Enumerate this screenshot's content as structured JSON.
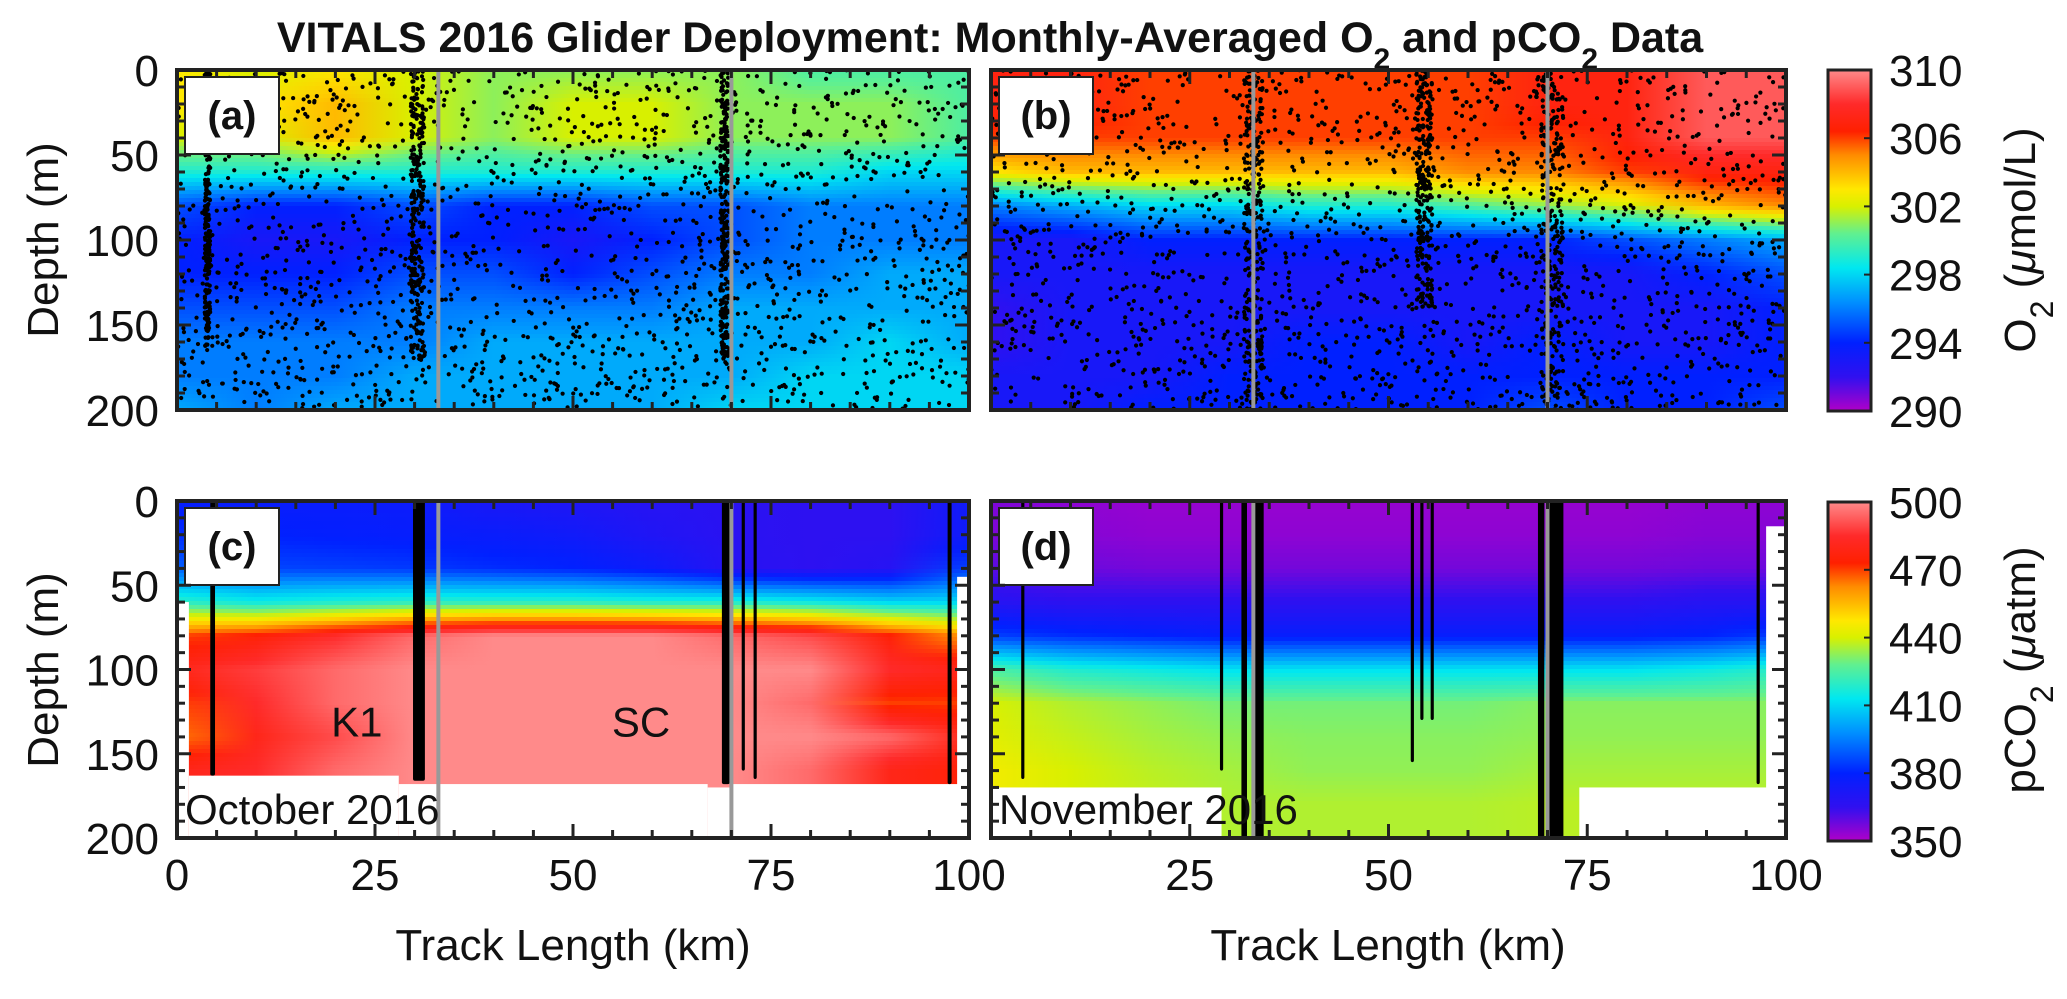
{
  "title_parts": [
    "VITALS 2016 Glider Deployment: Monthly-Averaged O",
    "2",
    " and pCO",
    "2",
    " Data"
  ],
  "xlabel": "Track Length (km)",
  "ylabel": "Depth (m)",
  "x_ticks": [
    "0",
    "25",
    "50",
    "75",
    "100"
  ],
  "y_ticks": [
    "0",
    "50",
    "100",
    "150",
    "200"
  ],
  "colorbars": [
    {
      "label_parts": [
        "O",
        "2",
        " (",
        "μ",
        "mol/L)"
      ],
      "ticks": [
        "310",
        "306",
        "302",
        "298",
        "294",
        "290"
      ],
      "clim": [
        290,
        310
      ]
    },
    {
      "label_parts": [
        "pCO",
        "2",
        " (",
        "μ",
        "atm)"
      ],
      "ticks": [
        "500",
        "470",
        "440",
        "410",
        "380",
        "350"
      ],
      "clim": [
        350,
        500
      ]
    }
  ],
  "colormap": [
    "#b000c8",
    "#3010f0",
    "#0020ff",
    "#0090ff",
    "#00e8f0",
    "#60f090",
    "#d8f000",
    "#ffe800",
    "#ff8c00",
    "#ff2000",
    "#ff2a2a",
    "#ff8a8a"
  ],
  "colormap_positions": [
    0,
    0.1,
    0.2,
    0.32,
    0.42,
    0.52,
    0.6,
    0.65,
    0.75,
    0.82,
    0.9,
    1
  ],
  "station_color": "#999999",
  "chart_data": [
    {
      "type": "heatmap",
      "panel_label": "(a)",
      "variable": "O2",
      "month": "",
      "clim": [
        290,
        310
      ],
      "xlim": [
        0,
        100
      ],
      "ylim": [
        0,
        200
      ],
      "x_km": [
        0,
        10,
        20,
        30,
        40,
        50,
        60,
        70,
        80,
        90,
        100
      ],
      "depth_m": [
        0,
        20,
        40,
        60,
        80,
        100,
        120,
        140,
        160,
        180,
        200
      ],
      "values": [
        [
          303,
          302,
          303,
          302,
          301,
          301,
          301,
          301,
          300,
          300,
          300
        ],
        [
          303,
          303,
          304,
          302,
          301,
          302,
          302,
          301,
          301,
          301,
          300
        ],
        [
          302,
          302,
          304,
          302,
          301,
          302,
          302,
          301,
          301,
          301,
          300
        ],
        [
          299,
          299,
          299,
          299,
          299,
          299,
          299,
          299,
          299,
          298,
          298
        ],
        [
          295,
          294,
          294,
          295,
          294,
          294,
          295,
          295,
          296,
          296,
          296
        ],
        [
          294,
          293,
          293,
          294,
          294,
          293,
          294,
          295,
          296,
          296,
          296
        ],
        [
          294,
          294,
          294,
          295,
          295,
          294,
          295,
          296,
          296,
          297,
          297
        ],
        [
          295,
          295,
          295,
          296,
          296,
          296,
          296,
          297,
          297,
          297,
          297
        ],
        [
          296,
          296,
          296,
          296,
          297,
          297,
          297,
          297,
          297,
          298,
          297
        ],
        [
          296,
          296,
          296,
          297,
          297,
          297,
          297,
          297,
          298,
          298,
          298
        ],
        [
          297,
          296,
          297,
          297,
          297,
          297,
          297,
          298,
          298,
          298,
          298
        ]
      ],
      "samples": "scatter",
      "dense_profiles_km": [
        [
          3.5,
          4.2,
          165
        ],
        [
          29.5,
          31.2,
          170
        ],
        [
          68.6,
          69.6,
          170
        ]
      ],
      "station_lines_km": [
        33,
        70
      ],
      "station_labels": [],
      "no_data": []
    },
    {
      "type": "heatmap",
      "panel_label": "(b)",
      "variable": "O2",
      "month": "",
      "clim": [
        290,
        310
      ],
      "xlim": [
        0,
        100
      ],
      "ylim": [
        0,
        200
      ],
      "x_km": [
        0,
        10,
        20,
        30,
        40,
        50,
        60,
        70,
        80,
        90,
        100
      ],
      "depth_m": [
        0,
        20,
        40,
        60,
        80,
        100,
        120,
        140,
        160,
        180,
        200
      ],
      "values": [
        [
          307,
          307,
          306,
          306,
          306,
          306,
          306,
          307,
          307,
          309,
          309
        ],
        [
          307,
          307,
          306,
          306,
          306,
          306,
          306,
          307,
          307,
          309,
          309
        ],
        [
          306,
          306,
          306,
          306,
          306,
          306,
          306,
          306,
          307,
          309,
          309
        ],
        [
          303,
          304,
          304,
          304,
          304,
          304,
          305,
          305,
          306,
          307,
          307
        ],
        [
          296,
          297,
          298,
          298,
          299,
          299,
          300,
          301,
          302,
          304,
          305
        ],
        [
          293,
          293,
          294,
          294,
          294,
          294,
          294,
          294,
          295,
          296,
          297
        ],
        [
          293,
          293,
          293,
          293,
          293,
          293,
          293,
          293,
          293,
          294,
          295
        ],
        [
          292,
          293,
          293,
          293,
          293,
          293,
          293,
          293,
          293,
          293,
          294
        ],
        [
          292,
          293,
          293,
          293,
          294,
          294,
          293,
          294,
          293,
          293,
          294
        ],
        [
          293,
          293,
          293,
          294,
          294,
          294,
          294,
          294,
          294,
          294,
          294
        ],
        [
          293,
          293,
          294,
          294,
          294,
          294,
          294,
          295,
          294,
          294,
          295
        ]
      ],
      "samples": "scatter",
      "dense_profiles_km": [
        [
          31.8,
          34.2,
          200
        ],
        [
          53.5,
          55.5,
          140
        ],
        [
          69.2,
          72,
          200
        ]
      ],
      "station_lines_km": [
        33,
        70
      ],
      "station_labels": [],
      "no_data": []
    },
    {
      "type": "heatmap",
      "panel_label": "(c)",
      "variable": "pCO2",
      "month": "October 2016",
      "clim": [
        350,
        500
      ],
      "xlim": [
        0,
        100
      ],
      "ylim": [
        0,
        200
      ],
      "x_km": [
        0,
        10,
        20,
        30,
        40,
        50,
        60,
        70,
        80,
        90,
        100
      ],
      "depth_m": [
        0,
        20,
        40,
        60,
        80,
        100,
        120,
        140,
        160,
        180,
        200
      ],
      "values": [
        [
          378,
          377,
          377,
          376,
          372,
          370,
          368,
          367,
          366,
          366,
          375
        ],
        [
          382,
          380,
          379,
          378,
          377,
          375,
          370,
          367,
          366,
          366,
          376
        ],
        [
          390,
          386,
          385,
          384,
          382,
          380,
          376,
          368,
          366,
          368,
          385
        ],
        [
          420,
          415,
          418,
          420,
          420,
          420,
          418,
          418,
          415,
          410,
          410
        ],
        [
          470,
          475,
          485,
          495,
          500,
          500,
          500,
          495,
          490,
          475,
          460
        ],
        [
          480,
          488,
          495,
          500,
          500,
          500,
          500,
          500,
          500,
          485,
          480
        ],
        [
          470,
          485,
          495,
          500,
          500,
          500,
          500,
          500,
          495,
          470,
          470
        ],
        [
          465,
          480,
          490,
          500,
          500,
          500,
          500,
          500,
          500,
          495,
          480
        ],
        [
          480,
          485,
          495,
          500,
          500,
          500,
          500,
          500,
          495,
          480,
          475
        ],
        [
          480,
          485,
          495,
          500,
          500,
          500,
          500,
          500,
          495,
          480,
          475
        ],
        [
          480,
          485,
          495,
          500,
          500,
          500,
          500,
          500,
          495,
          480,
          475
        ]
      ],
      "samples": "tracks",
      "tracks_km": [
        [
          4.2,
          4.8,
          163
        ],
        [
          29.8,
          31.3,
          166
        ],
        [
          68.8,
          69.8,
          168
        ],
        [
          71.3,
          71.7,
          160
        ],
        [
          72.8,
          73.2,
          165
        ],
        [
          97.3,
          97.8,
          168
        ]
      ],
      "station_lines_km": [
        33,
        70
      ],
      "station_labels": [
        {
          "text": "K1",
          "km": 22.7,
          "depth": 131
        },
        {
          "text": "SC",
          "km": 58.6,
          "depth": 131
        }
      ],
      "no_data": [
        [
          0,
          1.5,
          60,
          200
        ],
        [
          1.5,
          28,
          163,
          200
        ],
        [
          28,
          67,
          168,
          200
        ],
        [
          67,
          70,
          170,
          200
        ],
        [
          70,
          100,
          168,
          200
        ],
        [
          98.5,
          100,
          45,
          200
        ]
      ]
    },
    {
      "type": "heatmap",
      "panel_label": "(d)",
      "variable": "pCO2",
      "month": "November 2016",
      "clim": [
        350,
        500
      ],
      "xlim": [
        0,
        100
      ],
      "ylim": [
        0,
        200
      ],
      "x_km": [
        0,
        10,
        20,
        30,
        40,
        50,
        60,
        70,
        80,
        90,
        100
      ],
      "depth_m": [
        0,
        20,
        40,
        60,
        80,
        100,
        120,
        140,
        160,
        180,
        200
      ],
      "values": [
        [
          356,
          354,
          353,
          353,
          353,
          353,
          353,
          353,
          353,
          354,
          354
        ],
        [
          356,
          355,
          354,
          354,
          354,
          354,
          354,
          354,
          354,
          355,
          355
        ],
        [
          360,
          358,
          357,
          357,
          357,
          357,
          357,
          357,
          357,
          358,
          358
        ],
        [
          368,
          366,
          366,
          366,
          366,
          366,
          366,
          366,
          366,
          368,
          368
        ],
        [
          385,
          382,
          380,
          378,
          378,
          378,
          378,
          378,
          378,
          380,
          385
        ],
        [
          425,
          418,
          415,
          412,
          412,
          412,
          412,
          412,
          412,
          415,
          420
        ],
        [
          440,
          436,
          433,
          430,
          430,
          430,
          430,
          432,
          432,
          432,
          432
        ],
        [
          442,
          438,
          435,
          433,
          432,
          432,
          432,
          433,
          433,
          433,
          433
        ],
        [
          445,
          440,
          437,
          435,
          433,
          433,
          433,
          435,
          435,
          435,
          435
        ],
        [
          445,
          440,
          438,
          436,
          436,
          436,
          436,
          437,
          437,
          437,
          437
        ],
        [
          445,
          440,
          438,
          436,
          436,
          436,
          436,
          437,
          437,
          437,
          437
        ]
      ],
      "samples": "tracks",
      "tracks_km": [
        [
          3.8,
          4.2,
          165
        ],
        [
          28.8,
          29.2,
          160
        ],
        [
          31.5,
          32.2,
          200
        ],
        [
          33,
          34.3,
          200
        ],
        [
          52.8,
          53.2,
          155
        ],
        [
          54,
          54.4,
          130
        ],
        [
          55.3,
          55.7,
          130
        ],
        [
          68.8,
          69.6,
          200
        ],
        [
          70.2,
          72,
          200
        ],
        [
          96.3,
          96.7,
          168
        ]
      ],
      "station_lines_km": [
        33,
        70
      ],
      "station_labels": [],
      "no_data": [
        [
          0,
          29,
          170,
          200
        ],
        [
          74,
          100,
          170,
          200
        ],
        [
          97.5,
          100,
          15,
          200
        ]
      ]
    }
  ]
}
